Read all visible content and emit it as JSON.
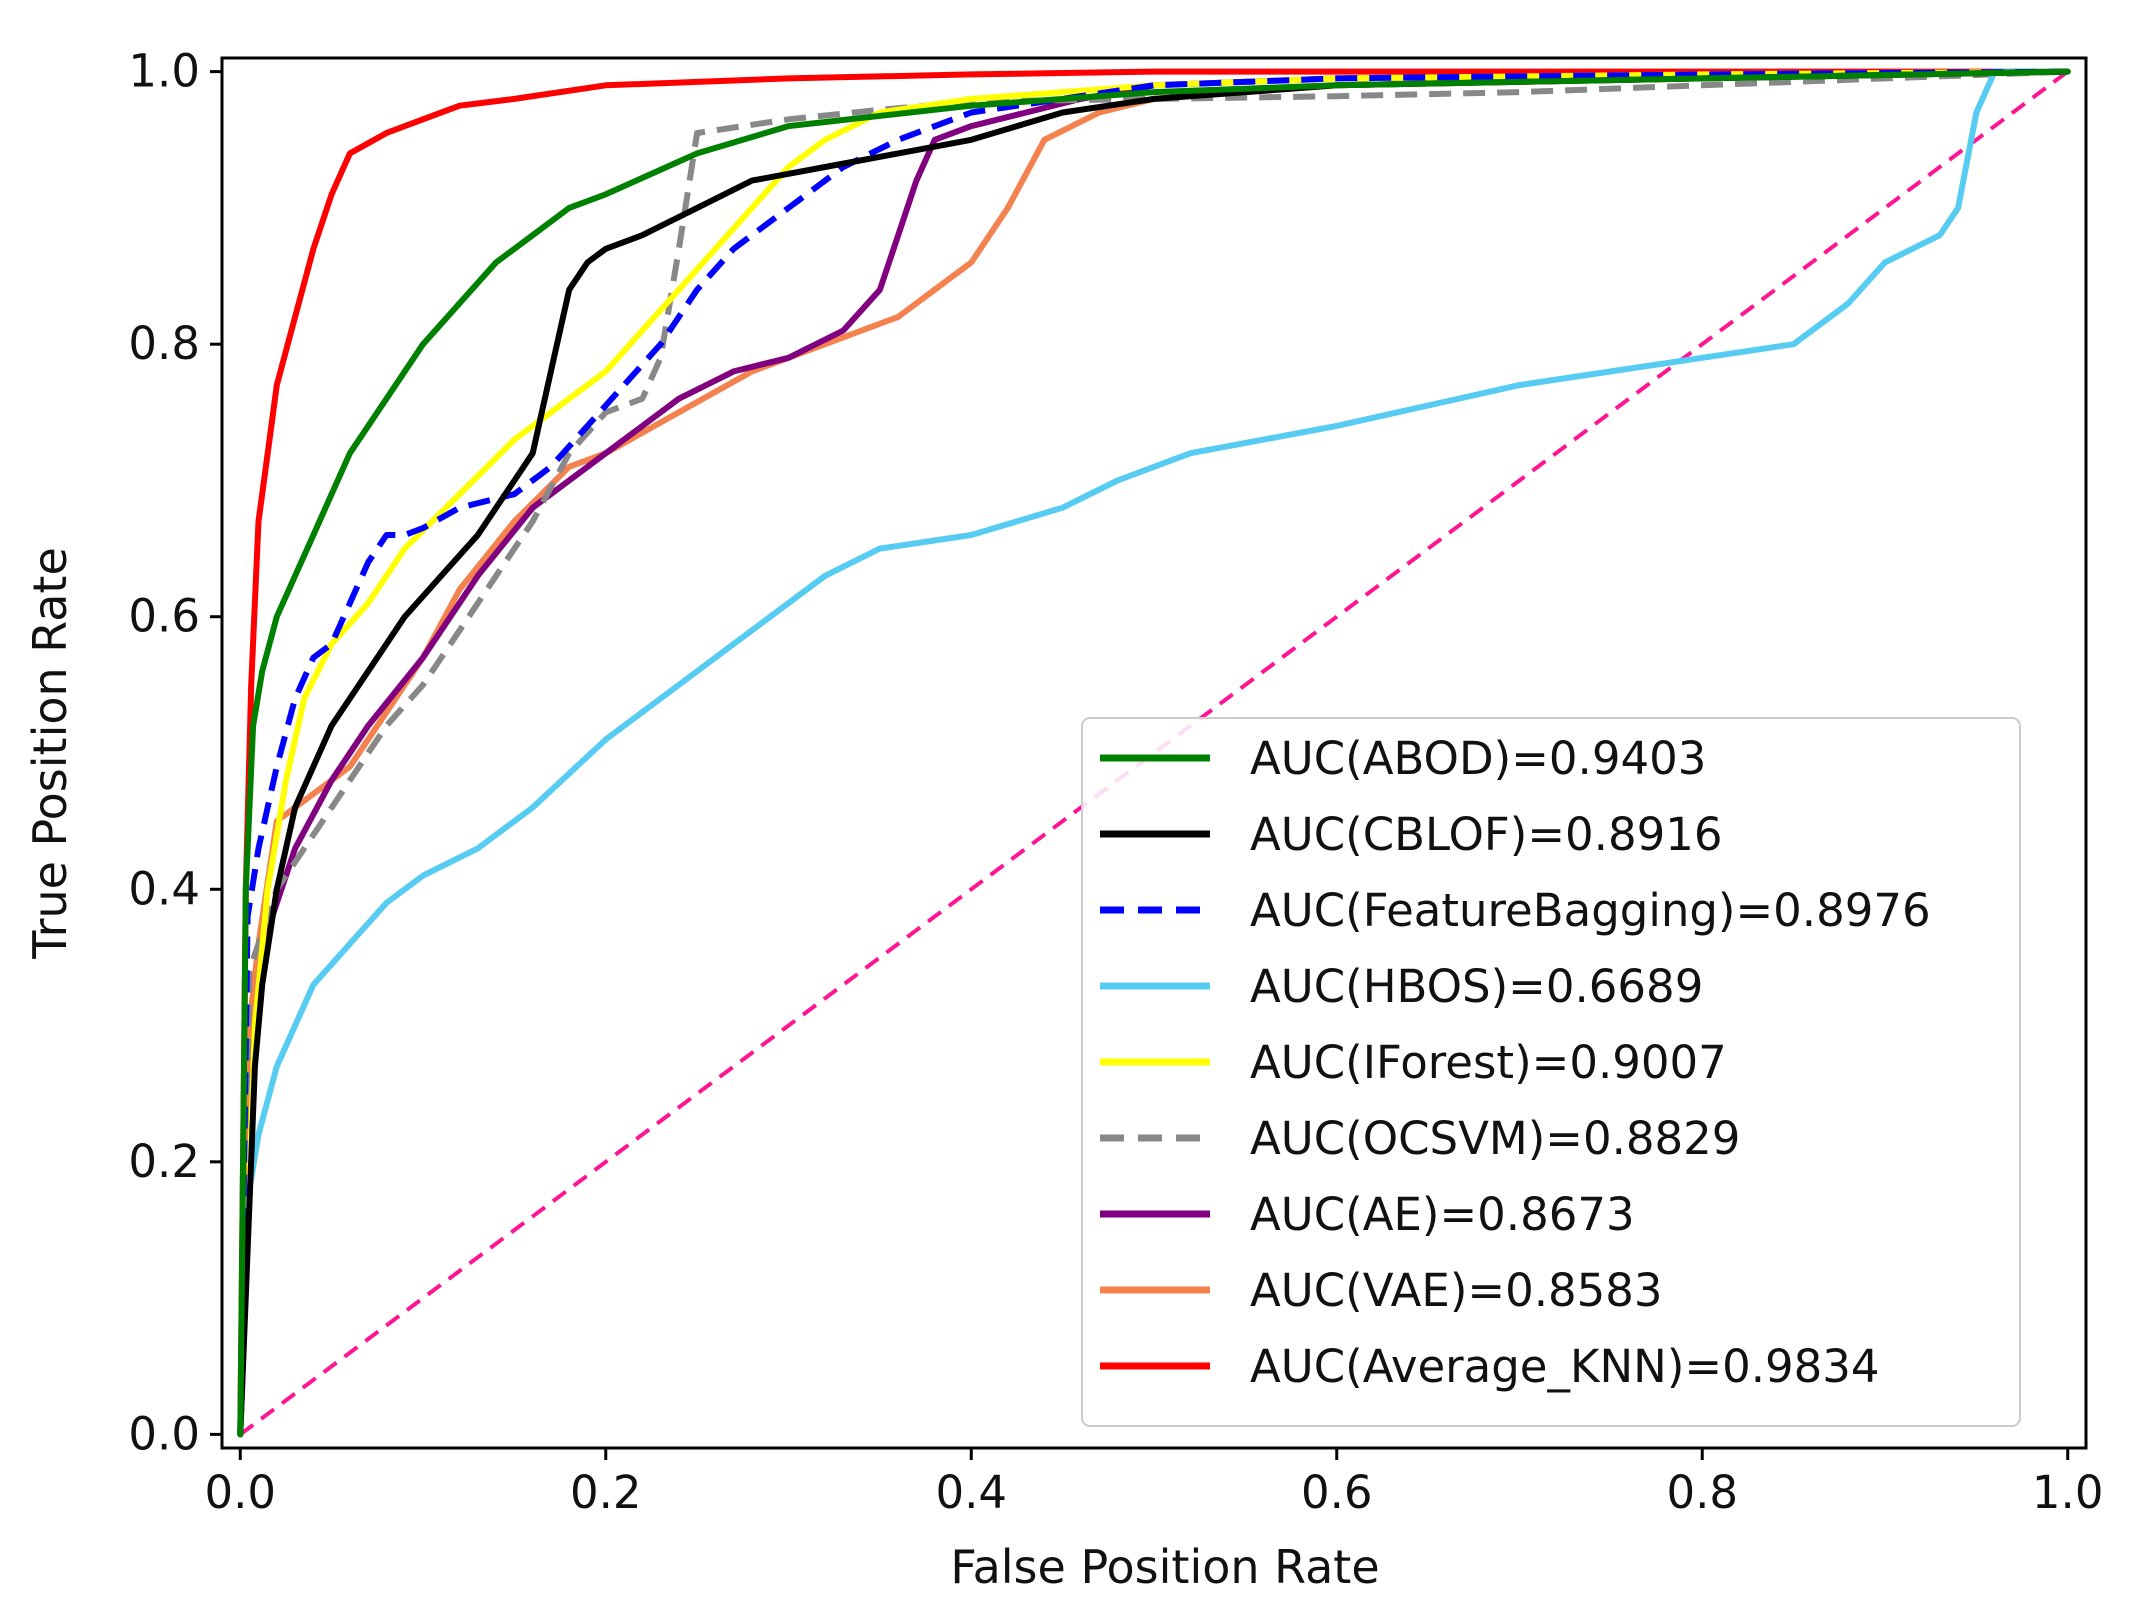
{
  "chart_data": {
    "type": "line",
    "title": "",
    "xlabel": "False Position Rate",
    "ylabel": "True Position Rate",
    "xlim": [
      -0.01,
      1.01
    ],
    "ylim": [
      -0.01,
      1.01
    ],
    "x_ticks": [
      0.0,
      0.2,
      0.4,
      0.6,
      0.8,
      1.0
    ],
    "x_tick_labels": [
      "0.0",
      "0.2",
      "0.4",
      "0.6",
      "0.8",
      "1.0"
    ],
    "y_ticks": [
      0.0,
      0.2,
      0.4,
      0.6,
      0.8,
      1.0
    ],
    "y_tick_labels": [
      "0.0",
      "0.2",
      "0.4",
      "0.6",
      "0.8",
      "1.0"
    ],
    "grid": false,
    "legend_position": "lower-right",
    "series": [
      {
        "name": "AUC(ABOD)=0.9403",
        "color": "#008000",
        "dash": "solid",
        "x": [
          0,
          0.003,
          0.007,
          0.012,
          0.02,
          0.03,
          0.04,
          0.05,
          0.06,
          0.07,
          0.085,
          0.1,
          0.12,
          0.14,
          0.16,
          0.18,
          0.2,
          0.25,
          0.3,
          0.4,
          0.5,
          0.6,
          0.8,
          1.0
        ],
        "y": [
          0,
          0.4,
          0.52,
          0.56,
          0.6,
          0.63,
          0.66,
          0.69,
          0.72,
          0.74,
          0.77,
          0.8,
          0.83,
          0.86,
          0.88,
          0.9,
          0.91,
          0.94,
          0.96,
          0.975,
          0.985,
          0.99,
          0.995,
          1.0
        ]
      },
      {
        "name": "AUC(CBLOF)=0.8916",
        "color": "#000000",
        "dash": "solid",
        "x": [
          0,
          0.008,
          0.012,
          0.02,
          0.03,
          0.05,
          0.07,
          0.09,
          0.11,
          0.13,
          0.15,
          0.16,
          0.17,
          0.18,
          0.19,
          0.2,
          0.22,
          0.25,
          0.28,
          0.32,
          0.36,
          0.4,
          0.45,
          0.5,
          0.6,
          0.8,
          1.0
        ],
        "y": [
          0,
          0.27,
          0.33,
          0.4,
          0.46,
          0.52,
          0.56,
          0.6,
          0.63,
          0.66,
          0.7,
          0.72,
          0.78,
          0.84,
          0.86,
          0.87,
          0.88,
          0.9,
          0.92,
          0.93,
          0.94,
          0.95,
          0.97,
          0.98,
          0.99,
          0.995,
          1.0
        ]
      },
      {
        "name": "AUC(FeatureBagging)=0.8976",
        "color": "#0000ff",
        "dash": "dashed",
        "x": [
          0,
          0.004,
          0.01,
          0.02,
          0.03,
          0.04,
          0.05,
          0.06,
          0.07,
          0.08,
          0.09,
          0.1,
          0.12,
          0.15,
          0.17,
          0.19,
          0.21,
          0.23,
          0.25,
          0.27,
          0.3,
          0.33,
          0.36,
          0.4,
          0.45,
          0.5,
          0.6,
          0.8,
          1.0
        ],
        "y": [
          0,
          0.38,
          0.43,
          0.49,
          0.54,
          0.57,
          0.58,
          0.61,
          0.64,
          0.66,
          0.66,
          0.665,
          0.68,
          0.69,
          0.71,
          0.74,
          0.77,
          0.8,
          0.84,
          0.87,
          0.9,
          0.93,
          0.95,
          0.97,
          0.98,
          0.99,
          0.995,
          0.998,
          1.0
        ]
      },
      {
        "name": "AUC(HBOS)=0.6689",
        "color": "#56ccf2",
        "dash": "solid",
        "x": [
          0,
          0.005,
          0.01,
          0.02,
          0.04,
          0.06,
          0.08,
          0.1,
          0.13,
          0.16,
          0.2,
          0.23,
          0.26,
          0.29,
          0.32,
          0.35,
          0.4,
          0.45,
          0.48,
          0.52,
          0.56,
          0.6,
          0.65,
          0.7,
          0.75,
          0.8,
          0.85,
          0.88,
          0.9,
          0.93,
          0.94,
          0.95,
          0.96,
          1.0
        ],
        "y": [
          0,
          0.18,
          0.22,
          0.27,
          0.33,
          0.36,
          0.39,
          0.41,
          0.43,
          0.46,
          0.51,
          0.54,
          0.57,
          0.6,
          0.63,
          0.65,
          0.66,
          0.68,
          0.7,
          0.72,
          0.73,
          0.74,
          0.755,
          0.77,
          0.78,
          0.79,
          0.8,
          0.83,
          0.86,
          0.88,
          0.9,
          0.97,
          1.0,
          1.0
        ]
      },
      {
        "name": "AUC(IForest)=0.9007",
        "color": "#ffff00",
        "dash": "solid",
        "x": [
          0,
          0.008,
          0.015,
          0.025,
          0.035,
          0.05,
          0.07,
          0.09,
          0.12,
          0.15,
          0.18,
          0.2,
          0.22,
          0.24,
          0.26,
          0.28,
          0.3,
          0.32,
          0.35,
          0.4,
          0.5,
          0.6,
          0.8,
          1.0
        ],
        "y": [
          0,
          0.3,
          0.4,
          0.48,
          0.54,
          0.58,
          0.61,
          0.65,
          0.69,
          0.73,
          0.76,
          0.78,
          0.81,
          0.84,
          0.87,
          0.9,
          0.93,
          0.95,
          0.97,
          0.98,
          0.99,
          0.995,
          0.998,
          1.0
        ]
      },
      {
        "name": "AUC(OCSVM)=0.8829",
        "color": "#888888",
        "dash": "dashed",
        "x": [
          0,
          0.005,
          0.01,
          0.02,
          0.04,
          0.06,
          0.08,
          0.1,
          0.12,
          0.14,
          0.16,
          0.18,
          0.2,
          0.22,
          0.23,
          0.24,
          0.25,
          0.3,
          0.35,
          0.4,
          0.5,
          0.6,
          0.7,
          0.8,
          0.9,
          1.0
        ],
        "y": [
          0,
          0.34,
          0.36,
          0.4,
          0.44,
          0.48,
          0.52,
          0.55,
          0.59,
          0.63,
          0.67,
          0.72,
          0.75,
          0.76,
          0.79,
          0.87,
          0.955,
          0.965,
          0.972,
          0.978,
          0.98,
          0.982,
          0.985,
          0.99,
          0.995,
          1.0
        ]
      },
      {
        "name": "AUC(AE)=0.8673",
        "color": "#800080",
        "dash": "solid",
        "x": [
          0,
          0.008,
          0.015,
          0.03,
          0.05,
          0.07,
          0.1,
          0.13,
          0.16,
          0.2,
          0.24,
          0.27,
          0.3,
          0.33,
          0.35,
          0.36,
          0.37,
          0.38,
          0.4,
          0.43,
          0.46,
          0.5,
          0.6,
          0.8,
          1.0
        ],
        "y": [
          0,
          0.3,
          0.37,
          0.43,
          0.48,
          0.52,
          0.57,
          0.63,
          0.68,
          0.72,
          0.76,
          0.78,
          0.79,
          0.81,
          0.84,
          0.88,
          0.92,
          0.95,
          0.96,
          0.97,
          0.98,
          0.99,
          0.995,
          0.998,
          1.0
        ]
      },
      {
        "name": "AUC(VAE)=0.8583",
        "color": "#f4824f",
        "dash": "solid",
        "x": [
          0,
          0.005,
          0.01,
          0.02,
          0.04,
          0.06,
          0.08,
          0.1,
          0.12,
          0.15,
          0.18,
          0.2,
          0.24,
          0.28,
          0.32,
          0.36,
          0.38,
          0.4,
          0.42,
          0.44,
          0.47,
          0.5,
          0.6,
          0.8,
          1.0
        ],
        "y": [
          0,
          0.3,
          0.36,
          0.45,
          0.47,
          0.49,
          0.53,
          0.57,
          0.62,
          0.67,
          0.71,
          0.72,
          0.75,
          0.78,
          0.8,
          0.82,
          0.84,
          0.86,
          0.9,
          0.95,
          0.97,
          0.98,
          0.99,
          0.995,
          1.0
        ]
      },
      {
        "name": "AUC(Average_KNN)=0.9834",
        "color": "#ff0000",
        "dash": "solid",
        "x": [
          0,
          0.003,
          0.006,
          0.01,
          0.015,
          0.02,
          0.03,
          0.04,
          0.05,
          0.06,
          0.08,
          0.1,
          0.12,
          0.15,
          0.2,
          0.3,
          0.4,
          0.5,
          0.6,
          0.8,
          1.0
        ],
        "y": [
          0,
          0.4,
          0.55,
          0.67,
          0.72,
          0.77,
          0.82,
          0.87,
          0.91,
          0.94,
          0.955,
          0.965,
          0.975,
          0.98,
          0.99,
          0.995,
          0.998,
          1.0,
          1.0,
          1.0,
          1.0
        ]
      },
      {
        "name": "diagonal",
        "color": "#ff1493",
        "dash": "dashed",
        "legend": false,
        "x": [
          0,
          1
        ],
        "y": [
          0,
          1
        ]
      }
    ]
  }
}
